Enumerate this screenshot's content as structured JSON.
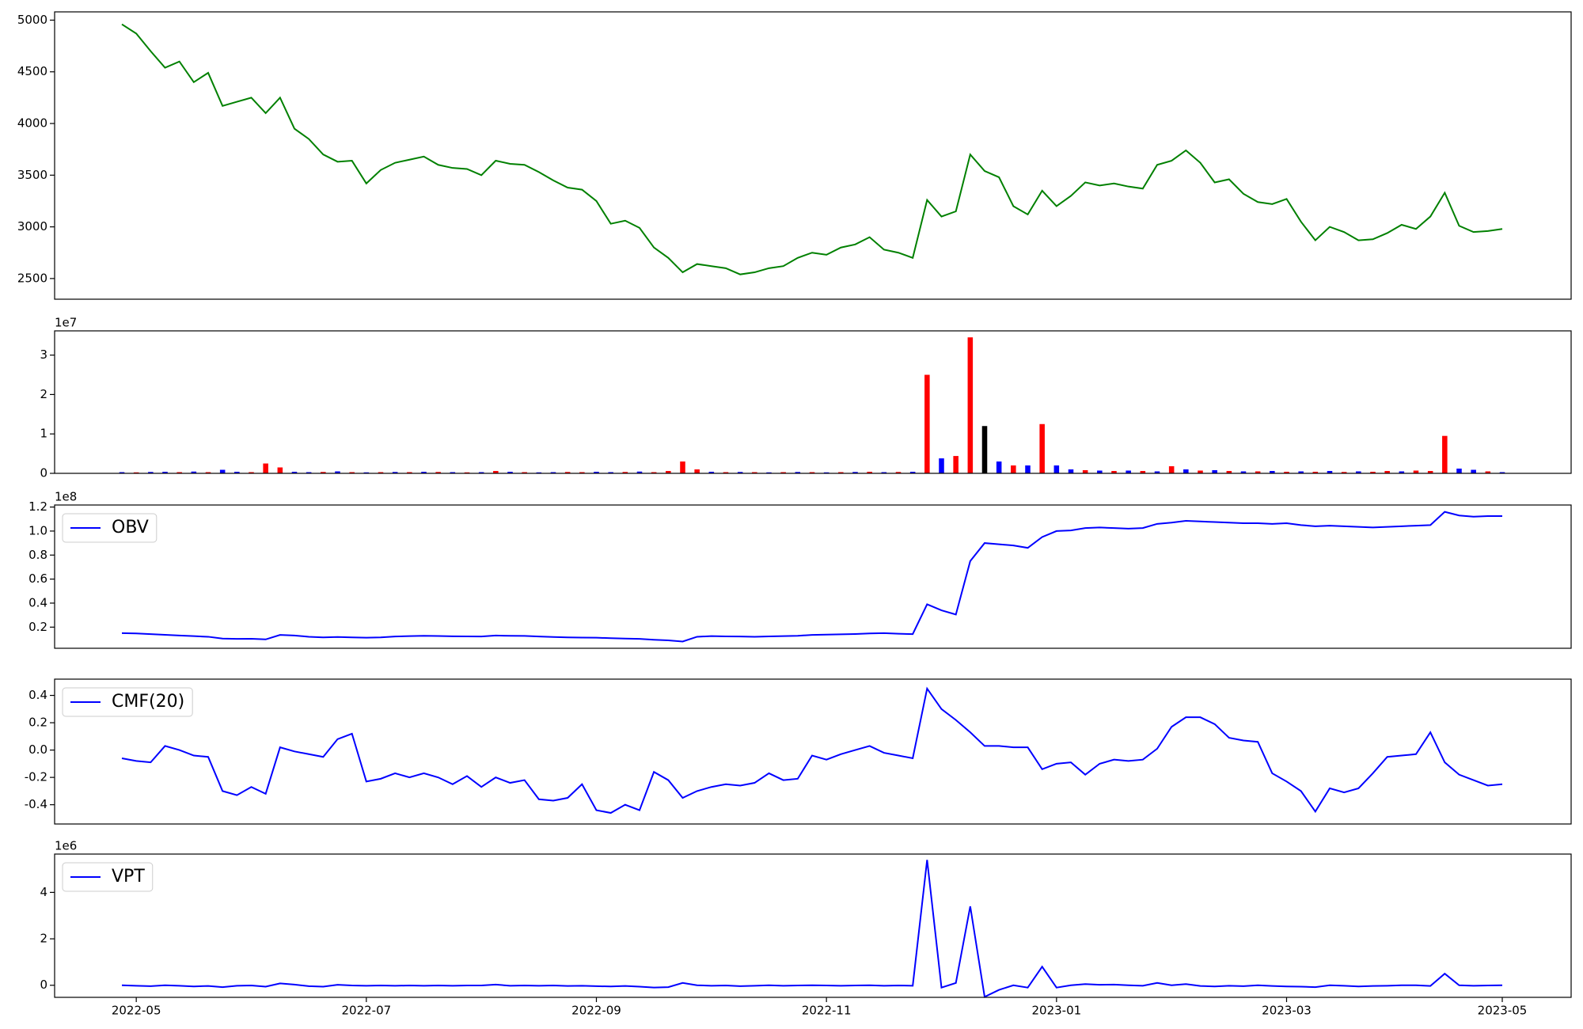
{
  "chart_data": [
    {
      "type": "line",
      "color": "green",
      "values": [
        4960,
        4870,
        4700,
        4540,
        4600,
        4400,
        4490,
        4170,
        4210,
        4250,
        4100,
        4250,
        3950,
        3850,
        3700,
        3630,
        3640,
        3420,
        3550,
        3620,
        3650,
        3680,
        3600,
        3570,
        3560,
        3500,
        3640,
        3610,
        3600,
        3530,
        3450,
        3380,
        3360,
        3250,
        3030,
        3060,
        2990,
        2800,
        2700,
        2560,
        2640,
        2620,
        2600,
        2540,
        2560,
        2600,
        2620,
        2700,
        2750,
        2730,
        2800,
        2830,
        2900,
        2780,
        2750,
        2700,
        3260,
        3100,
        3150,
        3700,
        3540,
        3480,
        3200,
        3120,
        3350,
        3200,
        3300,
        3430,
        3400,
        3420,
        3390,
        3370,
        3600,
        3640,
        3740,
        3620,
        3430,
        3460,
        3320,
        3240,
        3220,
        3270,
        3050,
        2870,
        3000,
        2950,
        2870,
        2880,
        2940,
        3020,
        2980,
        3100,
        3330,
        3010,
        2950,
        2960,
        2980
      ],
      "ylim": [
        2300,
        5080
      ],
      "yticks": [
        2500,
        3000,
        3500,
        4000,
        4500,
        5000
      ]
    },
    {
      "type": "bar",
      "offset_label": "1e7",
      "values": [
        300000,
        250000,
        350000,
        400000,
        300000,
        450000,
        300000,
        900000,
        400000,
        300000,
        2500000,
        1500000,
        400000,
        300000,
        350000,
        500000,
        300000,
        250000,
        300000,
        350000,
        300000,
        400000,
        350000,
        300000,
        250000,
        300000,
        600000,
        400000,
        300000,
        250000,
        300000,
        350000,
        300000,
        400000,
        300000,
        350000,
        450000,
        300000,
        600000,
        3000000,
        1000000,
        400000,
        300000,
        350000,
        300000,
        250000,
        300000,
        350000,
        300000,
        250000,
        300000,
        350000,
        400000,
        300000,
        350000,
        400000,
        25000000,
        3800000,
        4400000,
        34500000,
        12000000,
        3000000,
        2000000,
        2000000,
        12500000,
        2000000,
        1000000,
        800000,
        700000,
        600000,
        700000,
        600000,
        500000,
        1800000,
        1000000,
        700000,
        800000,
        600000,
        500000,
        500000,
        600000,
        400000,
        500000,
        400000,
        600000,
        350000,
        500000,
        400000,
        600000,
        500000,
        700000,
        600000,
        9500000,
        1200000,
        900000,
        500000,
        300000
      ],
      "colors": [
        "blue",
        "red",
        "blue",
        "blue",
        "red",
        "blue",
        "red",
        "blue",
        "blue",
        "red",
        "red",
        "red",
        "blue",
        "blue",
        "red",
        "blue",
        "red",
        "blue",
        "red",
        "blue",
        "red",
        "blue",
        "red",
        "blue",
        "red",
        "blue",
        "red",
        "blue",
        "red",
        "blue",
        "blue",
        "red",
        "red",
        "blue",
        "blue",
        "red",
        "blue",
        "red",
        "red",
        "red",
        "red",
        "blue",
        "red",
        "blue",
        "red",
        "blue",
        "red",
        "blue",
        "red",
        "blue",
        "red",
        "blue",
        "red",
        "blue",
        "red",
        "blue",
        "red",
        "blue",
        "red",
        "red",
        "black",
        "blue",
        "red",
        "blue",
        "red",
        "blue",
        "blue",
        "red",
        "blue",
        "red",
        "blue",
        "red",
        "blue",
        "red",
        "blue",
        "red",
        "blue",
        "red",
        "blue",
        "red",
        "blue",
        "red",
        "blue",
        "red",
        "blue",
        "red",
        "blue",
        "red",
        "red",
        "blue",
        "red",
        "red",
        "red",
        "blue",
        "blue",
        "red",
        "blue"
      ],
      "ylim": [
        0,
        36150000
      ],
      "yticks": [
        0,
        {
          "value": 10000000,
          "label": "1"
        },
        {
          "value": 20000000,
          "label": "2"
        },
        {
          "value": 30000000,
          "label": "3"
        }
      ]
    },
    {
      "type": "line",
      "offset_label": "1e8",
      "legend": "upper left",
      "series": [
        {
          "name": "OBV",
          "color": "blue",
          "values": [
            15000000,
            14800000,
            14200000,
            13600000,
            13000000,
            12500000,
            12000000,
            10500000,
            10200000,
            10300000,
            9800000,
            13500000,
            13000000,
            12000000,
            11500000,
            11800000,
            11500000,
            11200000,
            11500000,
            12200000,
            12500000,
            12800000,
            12600000,
            12400000,
            12300000,
            12200000,
            13000000,
            12800000,
            12700000,
            12200000,
            11800000,
            11500000,
            11300000,
            11200000,
            10800000,
            10500000,
            10200000,
            9500000,
            9000000,
            8000000,
            12000000,
            12500000,
            12300000,
            12200000,
            12000000,
            12300000,
            12500000,
            12800000,
            13500000,
            13800000,
            14000000,
            14300000,
            14800000,
            15000000,
            14500000,
            14200000,
            39000000,
            34000000,
            30500000,
            75000000,
            90000000,
            89000000,
            88000000,
            86000000,
            95000000,
            100000000,
            100500000,
            102500000,
            103000000,
            102500000,
            102000000,
            102500000,
            106000000,
            107000000,
            108500000,
            108000000,
            107500000,
            107000000,
            106500000,
            106500000,
            106000000,
            106500000,
            105000000,
            104000000,
            104500000,
            104000000,
            103500000,
            103000000,
            103500000,
            104000000,
            104500000,
            105000000,
            116000000,
            113000000,
            112000000,
            112500000,
            112500000
          ]
        }
      ],
      "ylim": [
        2400000,
        121700000
      ],
      "yticks": [
        {
          "value": 20000000,
          "label": "0.2"
        },
        {
          "value": 40000000,
          "label": "0.4"
        },
        {
          "value": 60000000,
          "label": "0.6"
        },
        {
          "value": 80000000,
          "label": "0.8"
        },
        {
          "value": 100000000,
          "label": "1.0"
        },
        {
          "value": 120000000,
          "label": "1.2"
        }
      ]
    },
    {
      "type": "line",
      "legend": "upper left",
      "series": [
        {
          "name": "CMF(20)",
          "color": "blue",
          "values": [
            -0.06,
            -0.08,
            -0.09,
            0.03,
            0.0,
            -0.04,
            -0.05,
            -0.3,
            -0.33,
            -0.27,
            -0.32,
            0.02,
            -0.01,
            -0.03,
            -0.05,
            0.08,
            0.12,
            -0.23,
            -0.21,
            -0.17,
            -0.2,
            -0.17,
            -0.2,
            -0.25,
            -0.19,
            -0.27,
            -0.2,
            -0.24,
            -0.22,
            -0.36,
            -0.37,
            -0.35,
            -0.25,
            -0.44,
            -0.46,
            -0.4,
            -0.44,
            -0.16,
            -0.22,
            -0.35,
            -0.3,
            -0.27,
            -0.25,
            -0.26,
            -0.24,
            -0.17,
            -0.22,
            -0.21,
            -0.04,
            -0.07,
            -0.03,
            0.0,
            0.03,
            -0.02,
            -0.04,
            -0.06,
            0.45,
            0.3,
            0.22,
            0.13,
            0.03,
            0.03,
            0.02,
            0.02,
            -0.14,
            -0.1,
            -0.09,
            -0.18,
            -0.1,
            -0.07,
            -0.08,
            -0.07,
            0.01,
            0.17,
            0.24,
            0.24,
            0.19,
            0.09,
            0.07,
            0.06,
            -0.17,
            -0.23,
            -0.3,
            -0.45,
            -0.28,
            -0.31,
            -0.28,
            -0.17,
            -0.05,
            -0.04,
            -0.03,
            0.13,
            -0.09,
            -0.18,
            -0.22,
            -0.26,
            -0.25
          ]
        }
      ],
      "ylim": [
        -0.541,
        0.519
      ],
      "yticks": [
        -0.4,
        -0.2,
        {
          "value": 0,
          "label": "0.0"
        },
        0.2,
        0.4
      ]
    },
    {
      "type": "line",
      "offset_label": "1e6",
      "legend": "upper left",
      "series": [
        {
          "name": "VPT",
          "color": "blue",
          "values": [
            0,
            -20000,
            -40000,
            0,
            -20000,
            -50000,
            -30000,
            -80000,
            -20000,
            -10000,
            -60000,
            80000,
            30000,
            -40000,
            -60000,
            20000,
            -10000,
            -20000,
            -10000,
            -20000,
            -10000,
            -20000,
            -10000,
            -20000,
            -10000,
            -10000,
            30000,
            -20000,
            -10000,
            -20000,
            -10000,
            -30000,
            -20000,
            -40000,
            -50000,
            -30000,
            -60000,
            -100000,
            -80000,
            100000,
            0,
            -20000,
            -10000,
            -40000,
            -20000,
            0,
            -20000,
            -10000,
            0,
            -10000,
            -20000,
            -10000,
            0,
            -20000,
            -10000,
            -20000,
            5400000,
            -100000,
            100000,
            3400000,
            -500000,
            -200000,
            0,
            -100000,
            800000,
            -100000,
            0,
            50000,
            20000,
            30000,
            0,
            -20000,
            100000,
            0,
            50000,
            -30000,
            -50000,
            -20000,
            -40000,
            0,
            -30000,
            -50000,
            -60000,
            -80000,
            0,
            -20000,
            -50000,
            -30000,
            -20000,
            0,
            0,
            -30000,
            500000,
            0,
            -20000,
            -10000,
            0
          ]
        }
      ],
      "ylim": [
        -520000,
        5650000
      ],
      "yticks": [
        0,
        {
          "value": 2000000,
          "label": "2"
        },
        {
          "value": 4000000,
          "label": "4"
        }
      ],
      "categories": [
        null,
        "2022-05",
        null,
        null,
        null,
        null,
        null,
        null,
        null,
        null,
        null,
        null,
        null,
        null,
        null,
        null,
        null,
        "2022-07",
        null,
        null,
        null,
        null,
        null,
        null,
        null,
        null,
        null,
        null,
        null,
        null,
        null,
        null,
        null,
        "2022-09",
        null,
        null,
        null,
        null,
        null,
        null,
        null,
        null,
        null,
        null,
        null,
        null,
        null,
        null,
        null,
        "2022-11",
        null,
        null,
        null,
        null,
        null,
        null,
        null,
        null,
        null,
        null,
        null,
        null,
        null,
        null,
        null,
        "2023-01",
        null,
        null,
        null,
        null,
        null,
        null,
        null,
        null,
        null,
        null,
        null,
        null,
        null,
        null,
        null,
        "2023-03",
        null,
        null,
        null,
        null,
        null,
        null,
        null,
        null,
        null,
        null,
        null,
        null,
        null,
        null,
        "2023-05"
      ]
    }
  ]
}
